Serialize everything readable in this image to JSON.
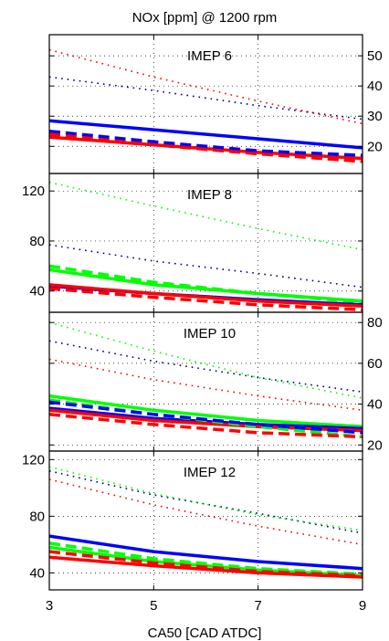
{
  "title": "NOx [ppm] @ 1200 rpm",
  "xlabel": "CA50 [CAD ATDC]",
  "colors": {
    "blue": "#0000ff",
    "red": "#ff0000",
    "green": "#00ff00",
    "dark": "#000080"
  },
  "chart_data": [
    {
      "type": "line",
      "label": "IMEP 6",
      "x_ticks": [
        3,
        5,
        7,
        9
      ],
      "xlim": [
        3,
        9
      ],
      "ylim": [
        11,
        57
      ],
      "y_ticks": [
        20,
        30,
        40,
        50
      ],
      "y_axis_side": "right",
      "grid": true,
      "series": [
        {
          "color": "blue",
          "style": "solid",
          "x": [
            3,
            5,
            7,
            9
          ],
          "y": [
            28.5,
            25.5,
            22.5,
            19.5
          ]
        },
        {
          "color": "red",
          "style": "solid",
          "x": [
            3,
            5,
            7,
            9
          ],
          "y": [
            23.0,
            20.5,
            18.0,
            16.0
          ]
        },
        {
          "color": "blue",
          "style": "dashed",
          "x": [
            3,
            5,
            7,
            9
          ],
          "y": [
            25.0,
            21.5,
            18.5,
            17.0
          ]
        },
        {
          "color": "red",
          "style": "dashed",
          "x": [
            3,
            5,
            7,
            9
          ],
          "y": [
            24.0,
            20.5,
            17.5,
            15.0
          ]
        },
        {
          "color": "dark",
          "style": "dotted",
          "x": [
            3,
            5,
            7,
            9
          ],
          "y": [
            43.0,
            38.5,
            33.5,
            29.0
          ]
        },
        {
          "color": "red",
          "style": "dotted",
          "x": [
            3,
            5,
            7,
            9
          ],
          "y": [
            52.0,
            43.0,
            35.0,
            27.5
          ]
        }
      ]
    },
    {
      "type": "line",
      "label": "IMEP 8",
      "x_ticks": [
        3,
        5,
        7,
        9
      ],
      "xlim": [
        3,
        9
      ],
      "ylim": [
        23,
        134
      ],
      "y_ticks": [
        40,
        80,
        120
      ],
      "y_axis_side": "left",
      "grid": true,
      "series": [
        {
          "color": "green",
          "style": "solid",
          "x": [
            3,
            5,
            7,
            9
          ],
          "y": [
            57,
            45,
            38,
            32
          ]
        },
        {
          "color": "green",
          "style": "dashed",
          "x": [
            3,
            5,
            7,
            9
          ],
          "y": [
            60,
            47,
            38,
            31
          ]
        },
        {
          "color": "blue",
          "style": "solid",
          "x": [
            3,
            5,
            7,
            9
          ],
          "y": [
            44,
            38,
            33,
            29
          ]
        },
        {
          "color": "red",
          "style": "solid",
          "x": [
            3,
            5,
            7,
            9
          ],
          "y": [
            45,
            38,
            32,
            28
          ]
        },
        {
          "color": "red",
          "style": "dashed",
          "x": [
            3,
            5,
            7,
            9
          ],
          "y": [
            42,
            35,
            29,
            25
          ]
        },
        {
          "color": "dark",
          "style": "dotted",
          "x": [
            3,
            5,
            7,
            9
          ],
          "y": [
            77,
            64,
            54,
            43
          ]
        },
        {
          "color": "green",
          "style": "dotted",
          "x": [
            3,
            5,
            7,
            9
          ],
          "y": [
            127,
            108,
            90,
            73
          ]
        }
      ]
    },
    {
      "type": "line",
      "label": "IMEP 10",
      "x_ticks": [
        3,
        5,
        7,
        9
      ],
      "xlim": [
        3,
        9
      ],
      "ylim": [
        17,
        85
      ],
      "y_ticks": [
        20,
        40,
        60,
        80
      ],
      "y_axis_side": "right",
      "grid": true,
      "series": [
        {
          "color": "green",
          "style": "solid",
          "x": [
            3,
            5,
            7,
            9
          ],
          "y": [
            44,
            37,
            32,
            29
          ]
        },
        {
          "color": "blue",
          "style": "solid",
          "x": [
            3,
            5,
            7,
            9
          ],
          "y": [
            38,
            33,
            30,
            28
          ]
        },
        {
          "color": "red",
          "style": "solid",
          "x": [
            3,
            5,
            7,
            9
          ],
          "y": [
            37,
            32,
            29,
            27
          ]
        },
        {
          "color": "green",
          "style": "dashed",
          "x": [
            3,
            5,
            7,
            9
          ],
          "y": [
            42,
            35,
            29,
            24
          ]
        },
        {
          "color": "blue",
          "style": "dashed",
          "x": [
            3,
            5,
            7,
            9
          ],
          "y": [
            41,
            35,
            30,
            26
          ]
        },
        {
          "color": "red",
          "style": "dashed",
          "x": [
            3,
            5,
            7,
            9
          ],
          "y": [
            35,
            30,
            26,
            24
          ]
        },
        {
          "color": "dark",
          "style": "dotted",
          "x": [
            3,
            5,
            7,
            9
          ],
          "y": [
            71,
            61,
            53,
            46
          ]
        },
        {
          "color": "green",
          "style": "dotted",
          "x": [
            3,
            5,
            7,
            9
          ],
          "y": [
            80,
            66,
            53,
            43
          ]
        },
        {
          "color": "red",
          "style": "dotted",
          "x": [
            3,
            5,
            7,
            9
          ],
          "y": [
            62,
            52,
            44,
            37
          ]
        }
      ]
    },
    {
      "type": "line",
      "label": "IMEP 12",
      "x_ticks": [
        3,
        5,
        7,
        9
      ],
      "xlim": [
        3,
        9
      ],
      "ylim": [
        28,
        126
      ],
      "y_ticks": [
        40,
        80,
        120
      ],
      "y_axis_side": "left",
      "grid": true,
      "series": [
        {
          "color": "blue",
          "style": "solid",
          "x": [
            3,
            5,
            7,
            9
          ],
          "y": [
            66,
            55,
            48,
            43
          ]
        },
        {
          "color": "green",
          "style": "solid",
          "x": [
            3,
            5,
            7,
            9
          ],
          "y": [
            58,
            48,
            42,
            38
          ]
        },
        {
          "color": "red",
          "style": "solid",
          "x": [
            3,
            5,
            7,
            9
          ],
          "y": [
            51,
            45,
            40,
            37
          ]
        },
        {
          "color": "green",
          "style": "dashed",
          "x": [
            3,
            5,
            7,
            9
          ],
          "y": [
            61,
            50,
            43,
            39
          ]
        },
        {
          "color": "red",
          "style": "dashed",
          "x": [
            3,
            5,
            7,
            9
          ],
          "y": [
            55,
            47,
            41,
            38
          ]
        },
        {
          "color": "dark",
          "style": "dotted",
          "x": [
            3,
            5,
            7,
            9
          ],
          "y": [
            112,
            95,
            82,
            68
          ]
        },
        {
          "color": "green",
          "style": "dotted",
          "x": [
            3,
            5,
            7,
            9
          ],
          "y": [
            115,
            96,
            81,
            70
          ]
        },
        {
          "color": "red",
          "style": "dotted",
          "x": [
            3,
            5,
            7,
            9
          ],
          "y": [
            106,
            88,
            73,
            60
          ]
        }
      ]
    }
  ]
}
